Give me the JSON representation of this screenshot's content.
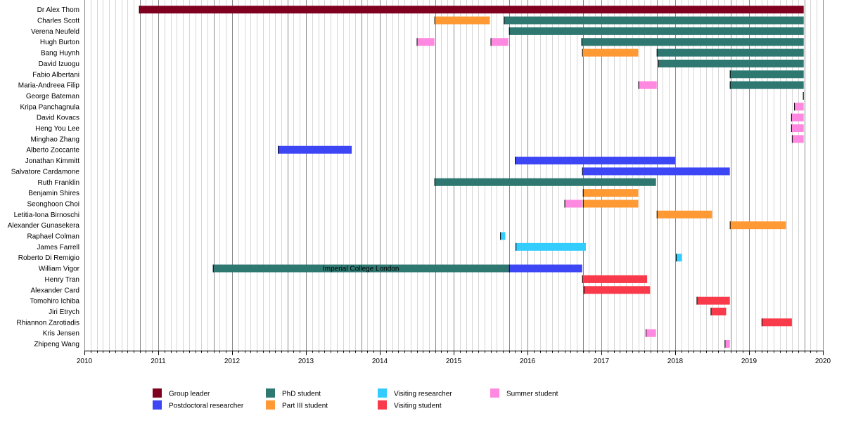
{
  "chart_data": {
    "type": "timeline",
    "title": "",
    "xlabel": "",
    "ylabel": "",
    "xlim": [
      2010,
      2020
    ],
    "x_ticks": [
      "2010",
      "2011",
      "2012",
      "2013",
      "2014",
      "2015",
      "2016",
      "2017",
      "2018",
      "2019",
      "2020"
    ],
    "grid": "vertical lines monthly (light), at each year start and each October (dark)",
    "legend_placement": "bottom",
    "roles": {
      "group_leader": {
        "label": "Group leader",
        "color": "#800020"
      },
      "postdoc": {
        "label": "Postdoctoral researcher",
        "color": "#3c46f5"
      },
      "phd": {
        "label": "PhD student",
        "color": "#2e7871"
      },
      "part3": {
        "label": "Part III student",
        "color": "#ff9933"
      },
      "visiting_researcher": {
        "label": "Visiting researcher",
        "color": "#33ccff"
      },
      "visiting_student": {
        "label": "Visiting student",
        "color": "#f93a4a"
      },
      "summer": {
        "label": "Summer student",
        "color": "#ff88e0"
      }
    },
    "legend_order": [
      "group_leader",
      "postdoc",
      "phd",
      "part3",
      "visiting_researcher",
      "visiting_student",
      "summer"
    ],
    "people": [
      {
        "name": "Dr Alex Thom",
        "periods": [
          {
            "role": "group_leader",
            "start": 2010.74,
            "end": 2019.74
          }
        ]
      },
      {
        "name": "Charles Scott",
        "periods": [
          {
            "role": "part3",
            "start": 2014.74,
            "end": 2015.49
          },
          {
            "role": "phd",
            "start": 2015.68,
            "end": 2019.74
          }
        ]
      },
      {
        "name": "Verena Neufeld",
        "periods": [
          {
            "role": "phd",
            "start": 2015.75,
            "end": 2019.74
          }
        ]
      },
      {
        "name": "Hugh Burton",
        "periods": [
          {
            "role": "summer",
            "start": 2014.5,
            "end": 2014.74
          },
          {
            "role": "summer",
            "start": 2015.5,
            "end": 2015.74
          },
          {
            "role": "phd",
            "start": 2016.73,
            "end": 2019.74
          }
        ]
      },
      {
        "name": "Bang Huynh",
        "periods": [
          {
            "role": "part3",
            "start": 2016.74,
            "end": 2017.5
          },
          {
            "role": "phd",
            "start": 2017.75,
            "end": 2019.74
          }
        ]
      },
      {
        "name": "David Izuogu",
        "periods": [
          {
            "role": "phd",
            "start": 2017.77,
            "end": 2019.74
          }
        ]
      },
      {
        "name": "Fabio Albertani",
        "periods": [
          {
            "role": "phd",
            "start": 2018.74,
            "end": 2019.74
          }
        ]
      },
      {
        "name": "Maria-Andreea Filip",
        "periods": [
          {
            "role": "summer",
            "start": 2017.5,
            "end": 2017.75
          },
          {
            "role": "phd",
            "start": 2018.74,
            "end": 2019.74
          }
        ]
      },
      {
        "name": "George Bateman",
        "periods": [
          {
            "role": "phd",
            "start": 2019.73,
            "end": 2019.74
          }
        ]
      },
      {
        "name": "Kripa Panchagnula",
        "periods": [
          {
            "role": "summer",
            "start": 2019.61,
            "end": 2019.74
          }
        ]
      },
      {
        "name": "David Kovacs",
        "periods": [
          {
            "role": "summer",
            "start": 2019.57,
            "end": 2019.74
          }
        ]
      },
      {
        "name": "Heng You Lee",
        "periods": [
          {
            "role": "summer",
            "start": 2019.57,
            "end": 2019.74
          }
        ]
      },
      {
        "name": "Minghao Zhang",
        "periods": [
          {
            "role": "summer",
            "start": 2019.58,
            "end": 2019.74
          }
        ]
      },
      {
        "name": "Alberto Zoccante",
        "periods": [
          {
            "role": "postdoc",
            "start": 2012.62,
            "end": 2013.62
          }
        ]
      },
      {
        "name": "Jonathan Kimmitt",
        "periods": [
          {
            "role": "postdoc",
            "start": 2015.83,
            "end": 2018.0
          }
        ]
      },
      {
        "name": "Salvatore Cardamone",
        "periods": [
          {
            "role": "postdoc",
            "start": 2016.74,
            "end": 2018.74
          }
        ]
      },
      {
        "name": "Ruth Franklin",
        "periods": [
          {
            "role": "phd",
            "start": 2014.74,
            "end": 2017.74
          }
        ]
      },
      {
        "name": "Benjamin Shires",
        "periods": [
          {
            "role": "part3",
            "start": 2016.75,
            "end": 2017.5
          }
        ]
      },
      {
        "name": "Seonghoon Choi",
        "periods": [
          {
            "role": "summer",
            "start": 2016.5,
            "end": 2016.74
          },
          {
            "role": "part3",
            "start": 2016.75,
            "end": 2017.5
          }
        ]
      },
      {
        "name": "Letitia-Iona Birnoschi",
        "periods": [
          {
            "role": "part3",
            "start": 2017.75,
            "end": 2018.5
          }
        ]
      },
      {
        "name": "Alexander Gunasekera",
        "periods": [
          {
            "role": "part3",
            "start": 2018.74,
            "end": 2019.5
          }
        ]
      },
      {
        "name": "Raphael Colman",
        "periods": [
          {
            "role": "visiting_researcher",
            "start": 2015.63,
            "end": 2015.7
          }
        ]
      },
      {
        "name": "James Farrell",
        "periods": [
          {
            "role": "visiting_researcher",
            "start": 2015.84,
            "end": 2016.79
          }
        ]
      },
      {
        "name": "Roberto Di Remigio",
        "periods": [
          {
            "role": "visiting_researcher",
            "start": 2018.01,
            "end": 2018.09
          }
        ]
      },
      {
        "name": "William Vigor",
        "periods": [
          {
            "role": "phd",
            "start": 2011.74,
            "end": 2015.75,
            "label": "Imperial College London"
          },
          {
            "role": "postdoc",
            "start": 2015.75,
            "end": 2016.74
          }
        ]
      },
      {
        "name": "Henry Tran",
        "periods": [
          {
            "role": "visiting_student",
            "start": 2016.74,
            "end": 2017.62
          }
        ]
      },
      {
        "name": "Alexander Card",
        "periods": [
          {
            "role": "visiting_student",
            "start": 2016.76,
            "end": 2017.66
          }
        ]
      },
      {
        "name": "Tomohiro Ichiba",
        "periods": [
          {
            "role": "visiting_student",
            "start": 2018.29,
            "end": 2018.74
          }
        ]
      },
      {
        "name": "Jiri Etrych",
        "periods": [
          {
            "role": "visiting_student",
            "start": 2018.48,
            "end": 2018.69
          }
        ]
      },
      {
        "name": "Rhiannon Zarotiadis",
        "periods": [
          {
            "role": "visiting_student",
            "start": 2019.17,
            "end": 2019.58
          }
        ]
      },
      {
        "name": "Kris Jensen",
        "periods": [
          {
            "role": "summer",
            "start": 2017.6,
            "end": 2017.74
          }
        ]
      },
      {
        "name": "Zhipeng Wang",
        "periods": [
          {
            "role": "summer",
            "start": 2018.67,
            "end": 2018.74
          }
        ]
      }
    ]
  }
}
